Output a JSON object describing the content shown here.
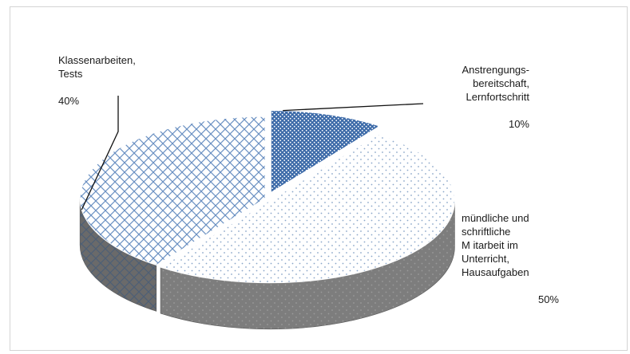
{
  "chart_data": {
    "type": "pie",
    "style": "3d-exploded-patterned",
    "slices": [
      {
        "name": "Anstrengungs-\nbereitschaft,\nLernfortschritt",
        "pct_label": "10%",
        "value": 10,
        "pattern": "dense-dots",
        "color": "#4a7ab8"
      },
      {
        "name": "mündliche und\nschriftliche\nM itarbeit im\nUnterricht,\nHausaufgaben",
        "pct_label": "50%",
        "value": 50,
        "pattern": "sparse-dots",
        "color": "#8aa6c8"
      },
      {
        "name": "Klassenarbeiten,\nTests",
        "pct_label": "40%",
        "value": 40,
        "pattern": "crosshatch",
        "color": "#5b88c0"
      }
    ],
    "legend": "none",
    "data_labels": "outside"
  }
}
